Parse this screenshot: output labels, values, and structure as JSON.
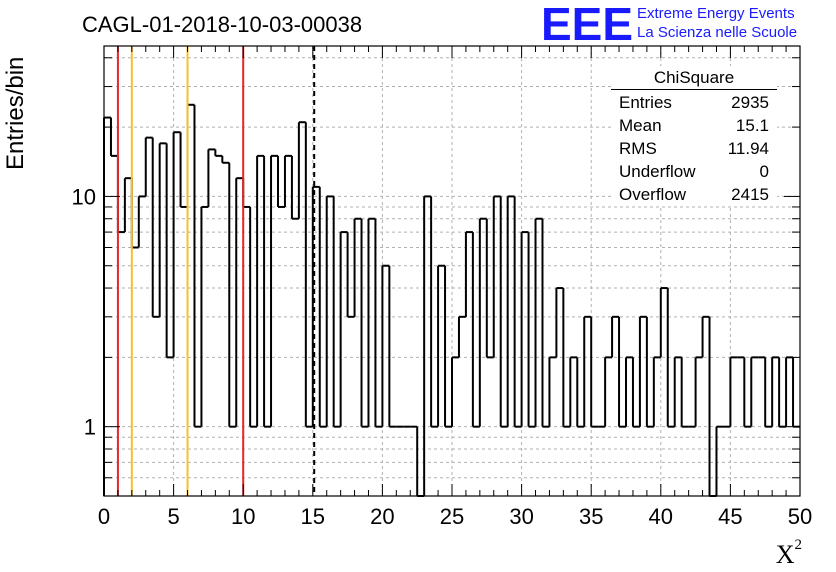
{
  "header": {
    "title": "CAGL-01-2018-10-03-00038",
    "brand_line1": "Extreme Energy Events",
    "brand_line2": "La Scienza nelle Scuole",
    "logo_text": "EEE"
  },
  "axes": {
    "ylabel": "Entries/bin",
    "xlabel": "X",
    "xlabel_sup": "2"
  },
  "stats": {
    "title": "ChiSquare",
    "rows": [
      {
        "label": "Entries",
        "value": "2935"
      },
      {
        "label": "Mean",
        "value": "15.1"
      },
      {
        "label": "RMS",
        "value": "11.94"
      },
      {
        "label": "Underflow",
        "value": "0"
      },
      {
        "label": "Overflow",
        "value": "2415"
      }
    ]
  },
  "colors": {
    "brand": "#1a1aff",
    "red_line": "#e8262a",
    "yellow_line": "#f2c12e",
    "histogram": "#000000",
    "grid": "#b0b0b0"
  },
  "chart_data": {
    "type": "histogram",
    "x_scale": "linear",
    "y_scale": "log",
    "xlim": [
      0,
      50
    ],
    "ylim": [
      0.5,
      45
    ],
    "bin_width": 0.5,
    "grid": true,
    "x_ticks": [
      0,
      5,
      10,
      15,
      20,
      25,
      30,
      35,
      40,
      45,
      50
    ],
    "y_ticks": [
      1,
      10
    ],
    "values": [
      22,
      15,
      7,
      12,
      6,
      10,
      18,
      3,
      17,
      2,
      19,
      9,
      25,
      1,
      9,
      16,
      15,
      14,
      1,
      12,
      9,
      1,
      15,
      1,
      15,
      9,
      15,
      8,
      21,
      1,
      11,
      1,
      10,
      1,
      7,
      3,
      8,
      1,
      8,
      1,
      5,
      1,
      1,
      1,
      1,
      0.5,
      10,
      1,
      5,
      1,
      2,
      3,
      7,
      1,
      8,
      2,
      10,
      1,
      10,
      1,
      7,
      1,
      8,
      1,
      2,
      4,
      1,
      2,
      1,
      3,
      1,
      1,
      2,
      3,
      1,
      2,
      1,
      3,
      1,
      2,
      4,
      1,
      2,
      1,
      1,
      2,
      3,
      0.5,
      1,
      1,
      2,
      2,
      1,
      2,
      2,
      1,
      2,
      1,
      2,
      1
    ],
    "vertical_lines": [
      {
        "x": 1,
        "color": "red"
      },
      {
        "x": 2,
        "color": "yellow"
      },
      {
        "x": 6,
        "color": "yellow"
      },
      {
        "x": 10,
        "color": "red"
      },
      {
        "x": 15.1,
        "color": "black",
        "style": "dashed"
      }
    ]
  }
}
